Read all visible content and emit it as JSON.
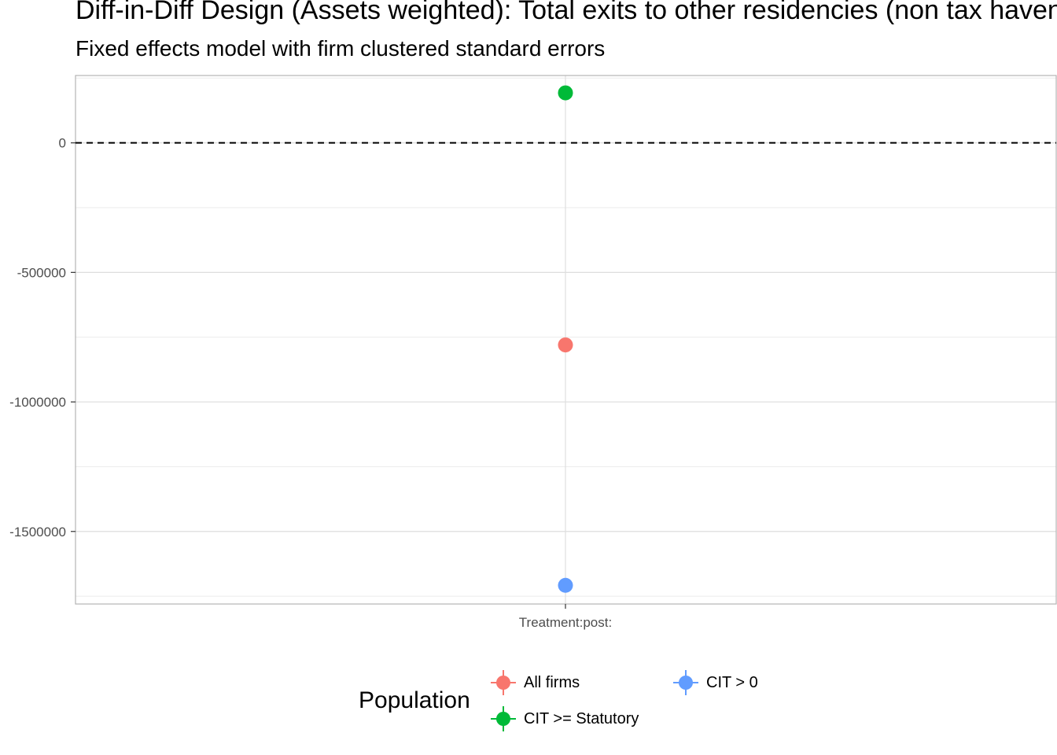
{
  "chart_data": {
    "type": "scatter",
    "title": "Diff-in-Diff Design (Assets weighted): Total exits to other residencies (non tax havens)",
    "subtitle": "Fixed effects model with firm clustered standard errors",
    "xlabel": "",
    "ylabel": "",
    "categories": [
      "Treatment:post:"
    ],
    "ylim": [
      -1780000,
      260000
    ],
    "yticks": [
      0,
      -500000,
      -1000000,
      -1500000
    ],
    "ytick_labels": [
      "0",
      "-500000",
      "-1000000",
      "-1500000"
    ],
    "reference_line": {
      "y": 0,
      "style": "dashed",
      "color": "#000000"
    },
    "grid": true,
    "legend": {
      "title": "Population",
      "placement": "bottom"
    },
    "series": [
      {
        "name": "All firms",
        "color": "#F8766D",
        "values": [
          -780000
        ]
      },
      {
        "name": "CIT >= Statutory",
        "color": "#00BA38",
        "values": [
          193000
        ]
      },
      {
        "name": "CIT > 0",
        "color": "#619CFF",
        "values": [
          -1708000
        ]
      }
    ]
  }
}
